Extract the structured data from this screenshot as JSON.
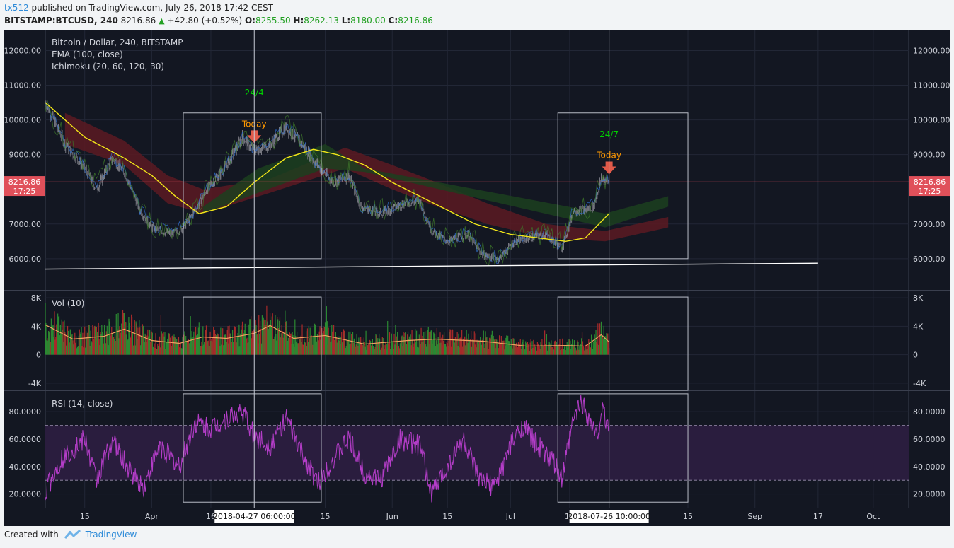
{
  "header": {
    "user": "tx512",
    "published": "published on TradingView.com, July 26, 2018 17:42 CEST",
    "symbol": "BITSTAMP:BTCUSD, 240",
    "price": "8216.86",
    "change": "+42.80 (+0.52%)",
    "open_label": "O:",
    "open": "8255.50",
    "high_label": "H:",
    "high": "8262.13",
    "low_label": "L:",
    "low": "8180.00",
    "close_label": "C:",
    "close": "8216.86"
  },
  "footer": {
    "created_with": "Created with",
    "brand": "TradingView",
    "logo_icon": "tradingview-logo-icon"
  },
  "colors": {
    "background": "#131722",
    "grid": "#222736",
    "text": "#d1d4dc",
    "candle_up": "#8f9099",
    "candle_down": "#6e6f78",
    "ema": "#f2e618",
    "cloud_bear": "#5c1a22",
    "cloud_bull": "#1c3f1f",
    "volume_up": "#2b8a32",
    "volume_down": "#a82a2a",
    "volume_ma": "#f0a060",
    "rsi": "#b43dc8",
    "rsi_band": "#2a1d3e",
    "annotation_green": "#00d000",
    "annotation_orange": "#ff9800",
    "price_tag": "#e0505a"
  },
  "chart_data": [
    {
      "type": "candlestick",
      "title": "Bitcoin / Dollar, 240, BITSTAMP",
      "indicators": [
        "EMA (100, close)",
        "Ichimoku (20, 60, 120, 30)"
      ],
      "y_ticks": [
        "12000.00",
        "11000.00",
        "10000.00",
        "9000.00",
        "7000.00",
        "6000.00"
      ],
      "ylim": [
        5100,
        12600
      ],
      "price_tag": {
        "value": "8216.86",
        "time": "17:25"
      },
      "x_labels": [
        "15",
        "Apr",
        "16",
        "15",
        "Jun",
        "15",
        "Jul",
        "16",
        "15",
        "Sep",
        "17",
        "Oct"
      ],
      "x_label_dates": [
        "2018-03-15",
        "2018-04-01",
        "2018-04-16",
        "2018-05-15",
        "2018-06-01",
        "2018-06-15",
        "2018-07-01",
        "2018-07-16",
        "2018-08-15",
        "2018-09-01",
        "2018-09-17",
        "2018-10-01"
      ],
      "cursor_labels": [
        "2018-04-27 06:00:00",
        "2018-07-26 10:00:00"
      ],
      "cursor_dates": [
        "2018-04-27",
        "2018-07-26"
      ],
      "xlim": [
        "2018-03-05",
        "2018-10-10"
      ],
      "price_path": [
        [
          "2018-03-05",
          10500
        ],
        [
          "2018-03-10",
          9300
        ],
        [
          "2018-03-15",
          8600
        ],
        [
          "2018-03-18",
          8000
        ],
        [
          "2018-03-22",
          8900
        ],
        [
          "2018-03-25",
          8500
        ],
        [
          "2018-03-29",
          7400
        ],
        [
          "2018-04-01",
          6900
        ],
        [
          "2018-04-06",
          6700
        ],
        [
          "2018-04-09",
          6900
        ],
        [
          "2018-04-12",
          7400
        ],
        [
          "2018-04-15",
          8000
        ],
        [
          "2018-04-20",
          8700
        ],
        [
          "2018-04-24",
          9500
        ],
        [
          "2018-04-27",
          9100
        ],
        [
          "2018-05-01",
          9300
        ],
        [
          "2018-05-05",
          9800
        ],
        [
          "2018-05-09",
          9300
        ],
        [
          "2018-05-13",
          8700
        ],
        [
          "2018-05-17",
          8200
        ],
        [
          "2018-05-21",
          8400
        ],
        [
          "2018-05-24",
          7500
        ],
        [
          "2018-05-29",
          7300
        ],
        [
          "2018-06-04",
          7600
        ],
        [
          "2018-06-08",
          7650
        ],
        [
          "2018-06-11",
          6800
        ],
        [
          "2018-06-15",
          6500
        ],
        [
          "2018-06-20",
          6700
        ],
        [
          "2018-06-24",
          6100
        ],
        [
          "2018-06-28",
          6000
        ],
        [
          "2018-07-02",
          6500
        ],
        [
          "2018-07-06",
          6600
        ],
        [
          "2018-07-10",
          6700
        ],
        [
          "2018-07-14",
          6300
        ],
        [
          "2018-07-17",
          7400
        ],
        [
          "2018-07-20",
          7400
        ],
        [
          "2018-07-22",
          7500
        ],
        [
          "2018-07-24",
          8300
        ],
        [
          "2018-07-26",
          8216.86
        ]
      ],
      "ema_path": [
        [
          "2018-03-05",
          10500
        ],
        [
          "2018-03-15",
          9500
        ],
        [
          "2018-03-25",
          8900
        ],
        [
          "2018-04-01",
          8400
        ],
        [
          "2018-04-07",
          7800
        ],
        [
          "2018-04-13",
          7300
        ],
        [
          "2018-04-20",
          7500
        ],
        [
          "2018-04-27",
          8200
        ],
        [
          "2018-05-05",
          8900
        ],
        [
          "2018-05-12",
          9150
        ],
        [
          "2018-05-18",
          9000
        ],
        [
          "2018-05-25",
          8700
        ],
        [
          "2018-06-01",
          8200
        ],
        [
          "2018-06-08",
          7800
        ],
        [
          "2018-06-15",
          7400
        ],
        [
          "2018-06-22",
          7000
        ],
        [
          "2018-07-01",
          6700
        ],
        [
          "2018-07-08",
          6600
        ],
        [
          "2018-07-15",
          6500
        ],
        [
          "2018-07-20",
          6600
        ],
        [
          "2018-07-26",
          7300
        ]
      ],
      "cloud_bear": [
        [
          "2018-03-10",
          10200,
          9300
        ],
        [
          "2018-03-25",
          9400,
          8700
        ],
        [
          "2018-04-05",
          8400,
          7600
        ],
        [
          "2018-04-14",
          8000,
          7300
        ],
        [
          "2018-05-01",
          8300,
          7900
        ],
        [
          "2018-05-20",
          9200,
          8600
        ],
        [
          "2018-06-01",
          8700,
          8000
        ],
        [
          "2018-06-10",
          8300,
          7600
        ],
        [
          "2018-06-25",
          7600,
          7000
        ],
        [
          "2018-07-10",
          7000,
          6600
        ],
        [
          "2018-07-25",
          6800,
          6500
        ],
        [
          "2018-08-10",
          7200,
          6900
        ]
      ],
      "cloud_bull": [
        [
          "2018-04-14",
          7300,
          7500
        ],
        [
          "2018-04-28",
          7900,
          8600
        ],
        [
          "2018-05-15",
          8600,
          9300
        ],
        [
          "2018-05-25",
          8500,
          8600
        ],
        [
          "2018-07-25",
          6900,
          7300
        ],
        [
          "2018-08-10",
          7500,
          7800
        ]
      ],
      "support_line": [
        [
          "2018-03-05",
          5700
        ],
        [
          "2018-09-17",
          5870
        ]
      ],
      "annotations": [
        {
          "label": "24/4",
          "date": "2018-04-27",
          "value": 10700,
          "color": "annotation_green"
        },
        {
          "label": "Today",
          "date": "2018-04-27",
          "value": 9800,
          "color": "annotation_orange",
          "arrow": "down"
        },
        {
          "label": "24/7",
          "date": "2018-07-26",
          "value": 9500,
          "color": "annotation_green"
        },
        {
          "label": "Today",
          "date": "2018-07-26",
          "value": 8900,
          "color": "annotation_orange",
          "arrow": "down"
        }
      ],
      "boxes": [
        {
          "from": "2018-04-09",
          "to": "2018-05-14",
          "top": 10200,
          "bottom": 6000
        },
        {
          "from": "2018-07-13",
          "to": "2018-08-15",
          "top": 10200,
          "bottom": 6000
        }
      ]
    },
    {
      "type": "bar",
      "title": "Vol (10)",
      "y_ticks": [
        "8K",
        "4K",
        "0",
        "-4K"
      ],
      "ylim": [
        -5000,
        9000
      ],
      "volume_ma_path": [
        [
          "2018-03-05",
          4200
        ],
        [
          "2018-03-12",
          2200
        ],
        [
          "2018-03-20",
          2600
        ],
        [
          "2018-03-25",
          3600
        ],
        [
          "2018-04-01",
          2000
        ],
        [
          "2018-04-08",
          1600
        ],
        [
          "2018-04-14",
          2500
        ],
        [
          "2018-04-20",
          2300
        ],
        [
          "2018-04-27",
          3000
        ],
        [
          "2018-05-01",
          4100
        ],
        [
          "2018-05-07",
          2300
        ],
        [
          "2018-05-15",
          2700
        ],
        [
          "2018-05-25",
          1500
        ],
        [
          "2018-06-05",
          2000
        ],
        [
          "2018-06-12",
          2200
        ],
        [
          "2018-06-24",
          1900
        ],
        [
          "2018-07-05",
          1200
        ],
        [
          "2018-07-15",
          1300
        ],
        [
          "2018-07-20",
          1200
        ],
        [
          "2018-07-24",
          2800
        ],
        [
          "2018-07-26",
          1800
        ]
      ],
      "boxes": [
        {
          "from": "2018-04-09",
          "to": "2018-05-14",
          "top": 8100,
          "bottom": -5000
        },
        {
          "from": "2018-07-13",
          "to": "2018-08-15",
          "top": 8100,
          "bottom": -5000
        }
      ]
    },
    {
      "type": "line",
      "title": "RSI (14, close)",
      "y_ticks": [
        "80.0000",
        "60.0000",
        "40.0000",
        "20.0000"
      ],
      "ylim": [
        10,
        95
      ],
      "bands": [
        30,
        70
      ],
      "rsi_path": [
        [
          "2018-03-05",
          22
        ],
        [
          "2018-03-09",
          45
        ],
        [
          "2018-03-15",
          60
        ],
        [
          "2018-03-18",
          30
        ],
        [
          "2018-03-22",
          60
        ],
        [
          "2018-03-26",
          38
        ],
        [
          "2018-03-30",
          25
        ],
        [
          "2018-04-03",
          55
        ],
        [
          "2018-04-08",
          40
        ],
        [
          "2018-04-12",
          72
        ],
        [
          "2018-04-16",
          68
        ],
        [
          "2018-04-20",
          75
        ],
        [
          "2018-04-24",
          80
        ],
        [
          "2018-04-27",
          62
        ],
        [
          "2018-05-01",
          55
        ],
        [
          "2018-05-05",
          75
        ],
        [
          "2018-05-09",
          50
        ],
        [
          "2018-05-13",
          28
        ],
        [
          "2018-05-17",
          45
        ],
        [
          "2018-05-21",
          60
        ],
        [
          "2018-05-25",
          35
        ],
        [
          "2018-05-29",
          30
        ],
        [
          "2018-06-03",
          60
        ],
        [
          "2018-06-08",
          55
        ],
        [
          "2018-06-11",
          20
        ],
        [
          "2018-06-15",
          40
        ],
        [
          "2018-06-19",
          60
        ],
        [
          "2018-06-23",
          30
        ],
        [
          "2018-06-27",
          25
        ],
        [
          "2018-07-01",
          55
        ],
        [
          "2018-07-04",
          70
        ],
        [
          "2018-07-08",
          55
        ],
        [
          "2018-07-12",
          42
        ],
        [
          "2018-07-14",
          30
        ],
        [
          "2018-07-17",
          75
        ],
        [
          "2018-07-19",
          88
        ],
        [
          "2018-07-21",
          75
        ],
        [
          "2018-07-23",
          60
        ],
        [
          "2018-07-24",
          82
        ],
        [
          "2018-07-26",
          68
        ]
      ],
      "boxes": [
        {
          "from": "2018-04-09",
          "to": "2018-05-14",
          "top": 93,
          "bottom": 14
        },
        {
          "from": "2018-07-13",
          "to": "2018-08-15",
          "top": 93,
          "bottom": 14
        }
      ]
    }
  ]
}
